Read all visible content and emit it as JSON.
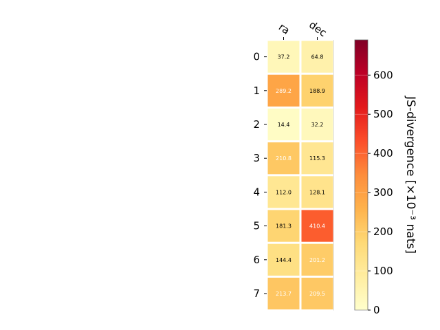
{
  "chart_data": {
    "type": "heatmap",
    "columns": [
      "ra",
      "dec"
    ],
    "rows": [
      "0",
      "1",
      "2",
      "3",
      "4",
      "5",
      "6",
      "7"
    ],
    "values": [
      [
        37.2,
        64.8
      ],
      [
        289.2,
        188.9
      ],
      [
        14.4,
        32.2
      ],
      [
        210.8,
        115.3
      ],
      [
        112.0,
        128.1
      ],
      [
        181.3,
        410.4
      ],
      [
        144.4,
        201.2
      ],
      [
        213.7,
        209.5
      ]
    ],
    "cell_labels": [
      [
        "37.2",
        "64.8"
      ],
      [
        "289.2",
        "188.9"
      ],
      [
        "14.4",
        "32.2"
      ],
      [
        "210.8",
        "115.3"
      ],
      [
        "112.0",
        "128.1"
      ],
      [
        "181.3",
        "410.4"
      ],
      [
        "144.4",
        "201.2"
      ],
      [
        "213.7",
        "209.5"
      ]
    ],
    "colorbar": {
      "label": "JS-divergence [×10⁻³ nats]",
      "range": [
        0,
        690
      ],
      "ticks": [
        0,
        100,
        200,
        300,
        400,
        500,
        600
      ],
      "tick_labels": [
        "0",
        "100",
        "200",
        "300",
        "400",
        "500",
        "600"
      ],
      "colormap": "YlOrRd"
    }
  }
}
